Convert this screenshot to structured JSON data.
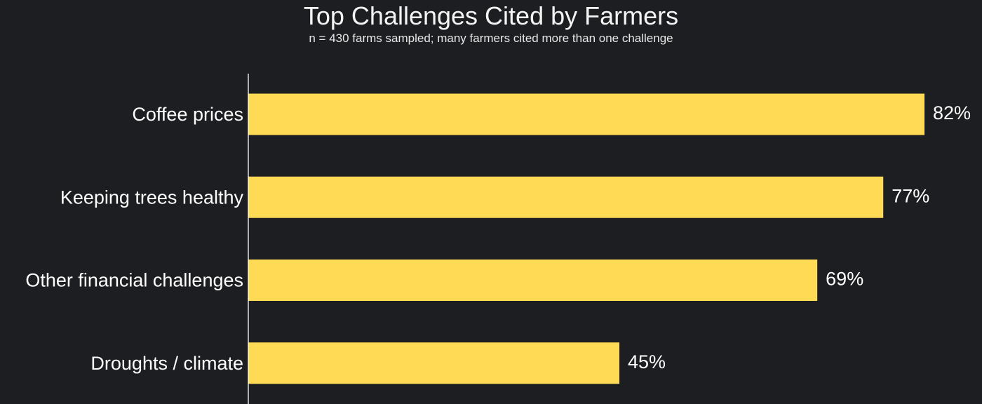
{
  "chart_data": {
    "type": "bar",
    "orientation": "horizontal",
    "title": "Top Challenges Cited by Farmers",
    "subtitle": "n = 430 farms sampled; many farmers cited more than one challenge",
    "categories": [
      "Coffee prices",
      "Keeping trees healthy",
      "Other financial challenges",
      "Droughts / climate"
    ],
    "values": [
      82,
      77,
      69,
      45
    ],
    "value_labels": [
      "82%",
      "77%",
      "69%",
      "45%"
    ],
    "unit": "%",
    "xlim": [
      0,
      82
    ],
    "grid": false,
    "legend": "none",
    "colors": {
      "background": "#1d1e21",
      "bar": "#ffdb55",
      "axis": "#ffffff",
      "text": "#ffffff"
    }
  }
}
